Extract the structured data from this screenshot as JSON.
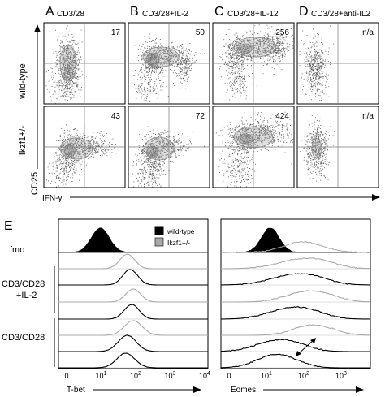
{
  "flow": {
    "panel_letters": [
      "A",
      "B",
      "C",
      "D"
    ],
    "conditions": [
      "CD3/28",
      "CD3/28+IL-2",
      "CD3/28+IL-12",
      "CD3/28+anti-IL2"
    ],
    "rows": [
      "wild-type",
      "Ikzf1+/-"
    ],
    "y_axis_label": "CD25",
    "x_axis_label": "IFN-γ",
    "values": [
      [
        "17",
        "50",
        "256",
        "n/a"
      ],
      [
        "43",
        "72",
        "424",
        "n/a"
      ]
    ]
  },
  "histogram": {
    "panel_letter": "E",
    "row_labels": {
      "fmo": "fmo",
      "group1_line1": "CD3/CD28",
      "group1_line2": "+IL-2",
      "group2": "CD3/CD28"
    },
    "legend": [
      {
        "label": "wild-type",
        "color": "#000000"
      },
      {
        "label": "Ikzf1+/-",
        "color": "#aaaaaa"
      }
    ],
    "left_axis_label": "T-bet",
    "right_axis_label": "Eomes",
    "left_ticks": [
      {
        "base": "0",
        "exp": ""
      },
      {
        "base": "10",
        "exp": "1"
      },
      {
        "base": "10",
        "exp": "2"
      },
      {
        "base": "10",
        "exp": "3"
      },
      {
        "base": "10",
        "exp": "4"
      }
    ],
    "right_ticks": [
      {
        "base": "0",
        "exp": ""
      },
      {
        "base": "10",
        "exp": "1"
      },
      {
        "base": "10",
        "exp": "2"
      },
      {
        "base": "10",
        "exp": "3"
      }
    ]
  },
  "colors": {
    "wild_type": "#000000",
    "ikzf1": "#aaaaaa",
    "dots": "#555555",
    "contour": "#8a8a8a"
  }
}
